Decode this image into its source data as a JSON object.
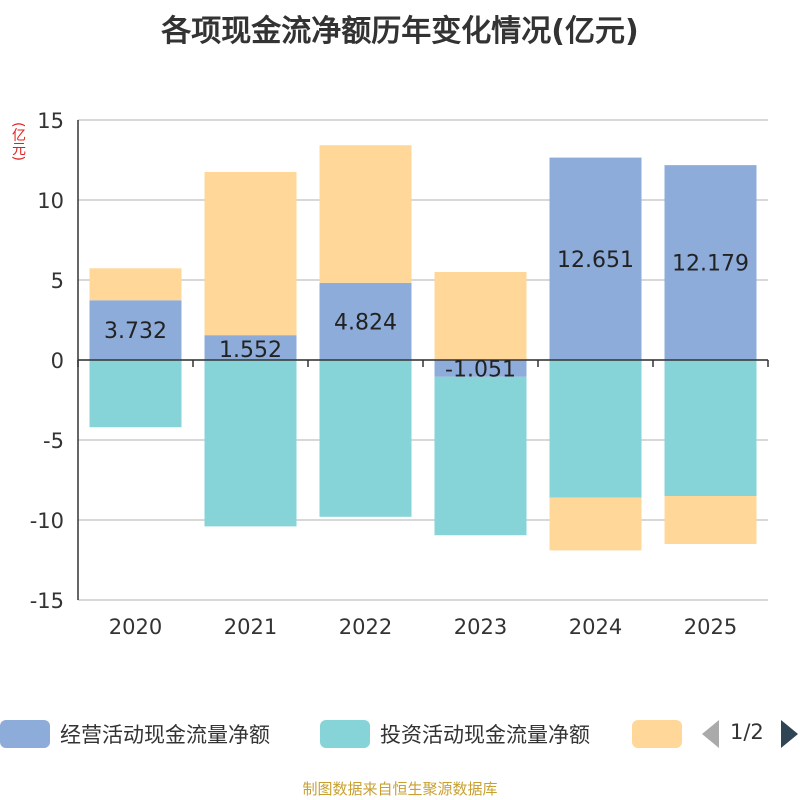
{
  "chart_data": {
    "type": "bar",
    "stacked": true,
    "title": "各项现金流净额历年变化情况(亿元)",
    "ylabel": "(亿元)",
    "ylim": [
      -15,
      15
    ],
    "yticks": [
      15,
      10,
      5,
      0,
      -5,
      -10,
      -15
    ],
    "categories": [
      "2020",
      "2021",
      "2022",
      "2023",
      "2024",
      "2025"
    ],
    "series": [
      {
        "name": "经营活动现金流量净额",
        "color": "#8eacd9",
        "values": [
          3.732,
          1.552,
          4.824,
          -1.051,
          12.651,
          12.179
        ],
        "labels": [
          "3.732",
          "1.552",
          "4.824",
          "-1.051",
          "12.651",
          "12.179"
        ]
      },
      {
        "name": "投资活动现金流量净额",
        "color": "#86d4d8",
        "values": [
          -4.2,
          -10.4,
          -9.8,
          -9.9,
          -8.6,
          -8.5
        ]
      },
      {
        "name": "",
        "color": "#ffd899",
        "values": [
          2.0,
          10.2,
          8.6,
          5.5,
          -3.3,
          -3.0
        ]
      }
    ],
    "legend": {
      "page": "1/2"
    },
    "source": "制图数据来自恒生聚源数据库"
  }
}
